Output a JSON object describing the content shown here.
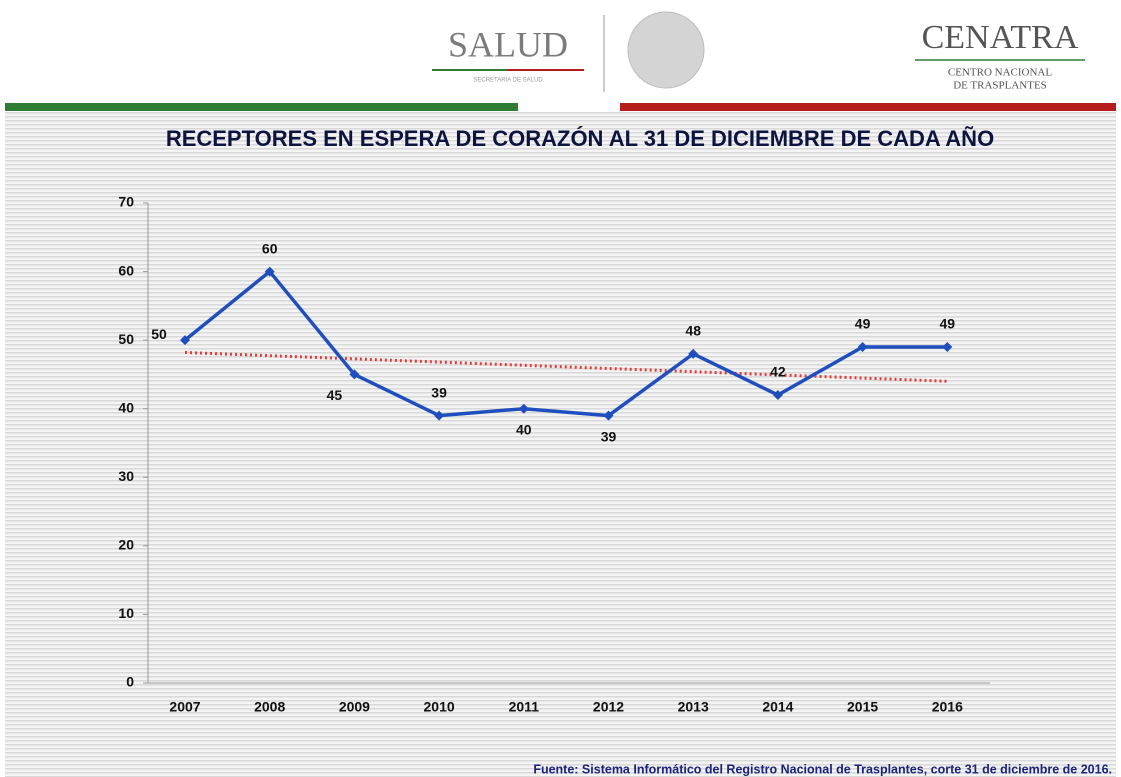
{
  "header": {
    "logo_left": "SALUD",
    "logo_left_sub": "SECRETARÍA DE SALUD",
    "logo_right": "CENATRA",
    "logo_right_sub1": "CENTRO NACIONAL",
    "logo_right_sub2": "DE TRASPLANTES"
  },
  "chart_data": {
    "type": "line",
    "title": "RECEPTORES EN ESPERA DE CORAZÓN AL 31 DE DICIEMBRE DE CADA AÑO",
    "categories": [
      "2007",
      "2008",
      "2009",
      "2010",
      "2011",
      "2012",
      "2013",
      "2014",
      "2015",
      "2016"
    ],
    "values": [
      50,
      60,
      45,
      39,
      40,
      39,
      48,
      42,
      49,
      49
    ],
    "color": "#1f4fbf",
    "trendline": {
      "color": "#e53935",
      "values": [
        48.2,
        44.0
      ]
    },
    "ylim": [
      0,
      70
    ],
    "yticks": [
      0,
      10,
      20,
      30,
      40,
      50,
      60,
      70
    ],
    "source": "Fuente: Sistema Informático del Registro Nacional de Trasplantes, corte 31 de diciembre de 2016."
  }
}
